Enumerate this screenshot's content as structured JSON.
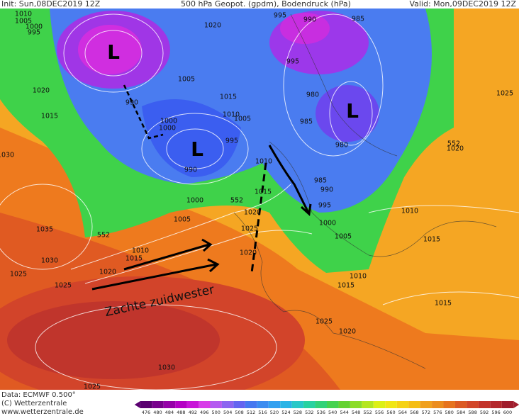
{
  "header": {
    "init": "Init: Sun,08DEC2019 12Z",
    "title": "500 hPa Geopot. (gpdm), Bodendruck (hPa)",
    "valid": "Valid: Mon,09DEC2019 12Z"
  },
  "footer": {
    "data": "Data: ECMWF  0.500°",
    "copyright": "(C) Wetterzentrale",
    "url": "www.wetterzentrale.de"
  },
  "annotation": "Zachte zuidwester",
  "lows": [
    "L",
    "L",
    "L"
  ],
  "isobar_labels": [
    "1010",
    "1005",
    "1000",
    "995",
    "1020",
    "995",
    "990",
    "985",
    "995",
    "1005",
    "1020",
    "1015",
    "980",
    "990",
    "1015",
    "1010",
    "1005",
    "1000",
    "1000",
    "985",
    "995",
    "980",
    "990",
    "1010",
    "985",
    "990",
    "1015",
    "995",
    "1000",
    "552",
    "1020",
    "1005",
    "1000",
    "1025",
    "1010",
    "1005",
    "1015",
    "1035",
    "552",
    "1010",
    "1015",
    "1030",
    "1020",
    "1025",
    "1025",
    "1020",
    "1010",
    "1015",
    "1015",
    "1025",
    "1020",
    "1030",
    "1025",
    "1020",
    "552",
    "1030",
    "1025"
  ],
  "colorbar": {
    "ticks": [
      476,
      480,
      484,
      488,
      492,
      496,
      500,
      504,
      508,
      512,
      516,
      520,
      524,
      528,
      532,
      536,
      540,
      544,
      548,
      552,
      556,
      560,
      564,
      568,
      572,
      576,
      580,
      584,
      588,
      592,
      596,
      600
    ],
    "colors": [
      "#5a0070",
      "#78008c",
      "#9600a8",
      "#b400c4",
      "#c814d8",
      "#d83ce8",
      "#b45af0",
      "#8c64f0",
      "#6464f0",
      "#4678f0",
      "#3c8cf0",
      "#32a0f0",
      "#28b4e6",
      "#28c8c8",
      "#28d2a0",
      "#32d278",
      "#46d250",
      "#64d232",
      "#8cdc28",
      "#b4e61e",
      "#dcf014",
      "#f0e614",
      "#f5d214",
      "#f5be14",
      "#f0a01e",
      "#eb8c1e",
      "#e6731e",
      "#dc5a23",
      "#d24628",
      "#c33228",
      "#b4282d",
      "#a01e2d"
    ]
  }
}
